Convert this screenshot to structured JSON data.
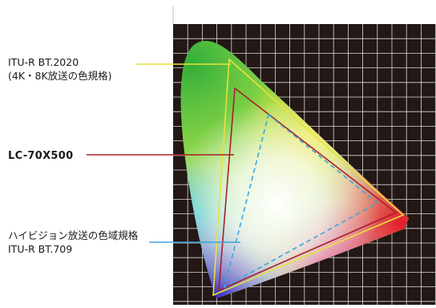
{
  "labels": {
    "bt2020_line1": "ITU-R BT.2020",
    "bt2020_line2": "(4K・8K放送の色規格)",
    "panel": "LC-70X500",
    "bt709_line1": "ハイビジョン放送の色域規格",
    "bt709_line2": "ITU-R BT.709"
  },
  "colors": {
    "background": "#ffffff",
    "grid_background": "#231815",
    "grid_lines": "#d9d9d9",
    "bt2020_line": "#e8e23a",
    "panel_line": "#a8202a",
    "bt709_line": "#3aa6dc",
    "label_text": "#1a1a1a"
  }
}
